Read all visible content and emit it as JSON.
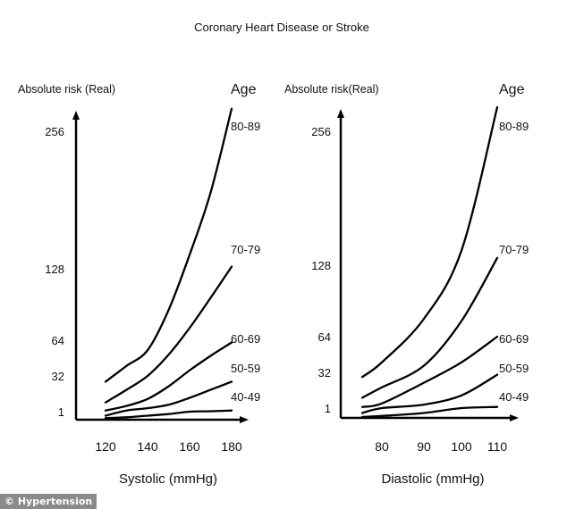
{
  "title": "Coronary Heart Disease or Stroke",
  "watermark": "© Hypertension",
  "chart_data": [
    {
      "type": "line",
      "ylabel": "Absolute risk (Real)",
      "xlabel": "Systolic (mmHg)",
      "legend_title": "Age",
      "yticks": [
        1,
        32,
        64,
        128,
        256
      ],
      "xticks": [
        120,
        140,
        160,
        180
      ],
      "x": [
        120,
        130,
        140,
        150,
        160,
        170,
        180
      ],
      "series": [
        {
          "name": "80-89",
          "values": [
            27,
            41,
            55,
            91,
            141,
            199,
            277
          ]
        },
        {
          "name": "70-79",
          "values": [
            9,
            20,
            32,
            51,
            75,
            102,
            130
          ]
        },
        {
          "name": "60-69",
          "values": [
            2,
            6,
            12,
            23,
            37,
            50,
            62
          ]
        },
        {
          "name": "50-59",
          "values": [
            0.5,
            2,
            4,
            7,
            13,
            20,
            27
          ]
        },
        {
          "name": "40-49",
          "values": [
            0.2,
            0.3,
            0.5,
            0.7,
            1,
            1.4,
            2
          ]
        }
      ]
    },
    {
      "type": "line",
      "ylabel": "Absolute risk(Real)",
      "xlabel": "Diastolic (mmHg)",
      "legend_title": "Age",
      "yticks": [
        1,
        32,
        64,
        128,
        256
      ],
      "xticks": [
        80,
        90,
        100,
        110
      ],
      "x": [
        75,
        80,
        90,
        100,
        110
      ],
      "series": [
        {
          "name": "80-89",
          "values": [
            28,
            41,
            80,
            142,
            279
          ]
        },
        {
          "name": "70-79",
          "values": [
            10,
            19,
            38,
            78,
            135
          ]
        },
        {
          "name": "60-69",
          "values": [
            2,
            5,
            23,
            41,
            64
          ]
        },
        {
          "name": "50-59",
          "values": [
            0.5,
            1,
            4,
            12,
            30
          ]
        },
        {
          "name": "40-49",
          "values": [
            0.1,
            0.2,
            0.5,
            1,
            2
          ]
        }
      ]
    }
  ]
}
